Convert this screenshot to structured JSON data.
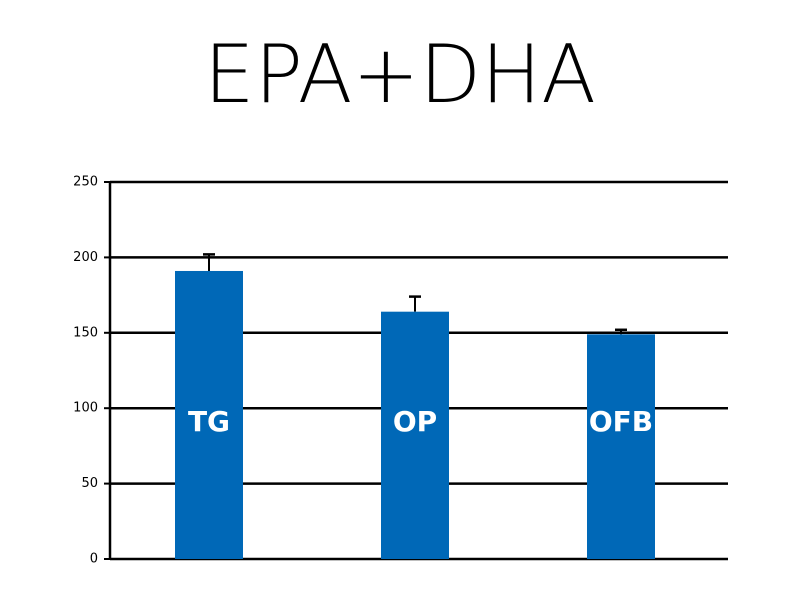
{
  "chart_data": {
    "type": "bar",
    "title": "EPA+DHA",
    "categories": [
      "TG",
      "OP",
      "OFB"
    ],
    "values": [
      191,
      164,
      149
    ],
    "errors": [
      11,
      10,
      3
    ],
    "color": "#0068b7",
    "ylim": [
      0,
      250
    ],
    "yticks": [
      0,
      50,
      100,
      150,
      200,
      250
    ],
    "grid": true
  }
}
